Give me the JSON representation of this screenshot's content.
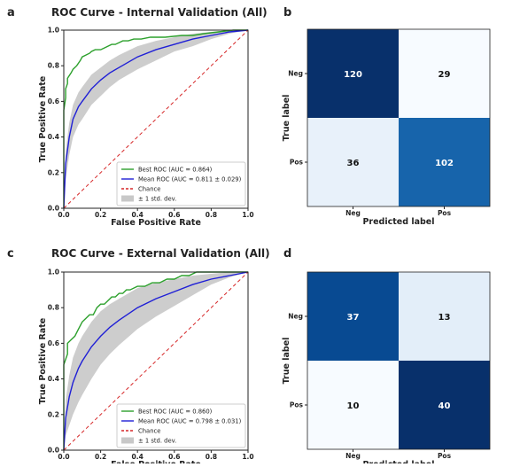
{
  "chart_data": [
    {
      "panel_label": "a",
      "type": "line",
      "title": "ROC Curve - Internal Validation (All)",
      "xlabel": "False Positive Rate",
      "ylabel": "True Positive Rate",
      "xlim": [
        0.0,
        1.0
      ],
      "ylim": [
        0.0,
        1.0
      ],
      "xticks": [
        "0.0",
        "0.2",
        "0.4",
        "0.6",
        "0.8",
        "1.0"
      ],
      "yticks": [
        "0.0",
        "0.2",
        "0.4",
        "0.6",
        "0.8",
        "1.0"
      ],
      "legend_position": "lower-right",
      "grid": false,
      "series": [
        {
          "name": "Best ROC (AUC = 0.864)",
          "color": "#2ca02c",
          "style": "step",
          "x": [
            0.0,
            0.0,
            0.01,
            0.01,
            0.02,
            0.02,
            0.04,
            0.05,
            0.07,
            0.09,
            0.1,
            0.12,
            0.14,
            0.15,
            0.17,
            0.2,
            0.22,
            0.24,
            0.26,
            0.28,
            0.3,
            0.32,
            0.35,
            0.38,
            0.42,
            0.47,
            0.55,
            0.64,
            0.7,
            0.76,
            0.84,
            0.92,
            1.0
          ],
          "y": [
            0.0,
            0.55,
            0.62,
            0.67,
            0.7,
            0.73,
            0.76,
            0.78,
            0.8,
            0.83,
            0.85,
            0.86,
            0.87,
            0.88,
            0.89,
            0.89,
            0.9,
            0.91,
            0.92,
            0.92,
            0.93,
            0.94,
            0.94,
            0.95,
            0.95,
            0.96,
            0.96,
            0.97,
            0.97,
            0.98,
            0.99,
            1.0,
            1.0
          ]
        },
        {
          "name": "Mean ROC (AUC = 0.811 ± 0.029)",
          "color": "#1f1fd6",
          "style": "line",
          "x": [
            0.0,
            0.01,
            0.03,
            0.05,
            0.08,
            0.1,
            0.15,
            0.2,
            0.25,
            0.3,
            0.4,
            0.5,
            0.6,
            0.7,
            0.8,
            0.9,
            1.0
          ],
          "y": [
            0.0,
            0.25,
            0.4,
            0.5,
            0.57,
            0.6,
            0.67,
            0.72,
            0.76,
            0.79,
            0.85,
            0.89,
            0.92,
            0.95,
            0.97,
            0.99,
            1.0
          ]
        },
        {
          "name": "Chance",
          "color": "#d62728",
          "style": "dashed",
          "x": [
            0.0,
            1.0
          ],
          "y": [
            0.0,
            1.0
          ]
        }
      ],
      "band": {
        "name": "± 1 std. dev.",
        "color": "#c8c8c8",
        "x": [
          0.0,
          0.01,
          0.03,
          0.05,
          0.08,
          0.1,
          0.15,
          0.2,
          0.25,
          0.3,
          0.4,
          0.5,
          0.6,
          0.7,
          0.8,
          0.9,
          1.0
        ],
        "upper": [
          0.0,
          0.32,
          0.48,
          0.58,
          0.65,
          0.68,
          0.75,
          0.79,
          0.83,
          0.86,
          0.91,
          0.94,
          0.96,
          0.98,
          0.99,
          1.0,
          1.0
        ],
        "lower": [
          0.0,
          0.16,
          0.3,
          0.4,
          0.47,
          0.5,
          0.58,
          0.63,
          0.68,
          0.72,
          0.78,
          0.83,
          0.88,
          0.91,
          0.95,
          0.98,
          1.0
        ]
      }
    },
    {
      "panel_label": "b",
      "type": "heatmap",
      "xlabel": "Predicted label",
      "ylabel": "True label",
      "x_categories": [
        "Neg",
        "Pos"
      ],
      "y_categories": [
        "Neg",
        "Pos"
      ],
      "values": [
        [
          120,
          29
        ],
        [
          36,
          102
        ]
      ],
      "colormap": "Blues"
    },
    {
      "panel_label": "c",
      "type": "line",
      "title": "ROC Curve - External Validation (All)",
      "xlabel": "False Positive Rate",
      "ylabel": "True Positive Rate",
      "xlim": [
        0.0,
        1.0
      ],
      "ylim": [
        0.0,
        1.0
      ],
      "xticks": [
        "0.0",
        "0.2",
        "0.4",
        "0.6",
        "0.8",
        "1.0"
      ],
      "yticks": [
        "0.0",
        "0.2",
        "0.4",
        "0.6",
        "0.8",
        "1.0"
      ],
      "legend_position": "lower-right",
      "grid": false,
      "series": [
        {
          "name": "Best ROC (AUC = 0.860)",
          "color": "#2ca02c",
          "style": "step",
          "x": [
            0.0,
            0.0,
            0.02,
            0.02,
            0.04,
            0.06,
            0.08,
            0.1,
            0.12,
            0.14,
            0.16,
            0.18,
            0.2,
            0.22,
            0.24,
            0.26,
            0.28,
            0.3,
            0.32,
            0.34,
            0.36,
            0.4,
            0.44,
            0.48,
            0.52,
            0.56,
            0.6,
            0.64,
            0.68,
            0.72,
            0.76,
            0.8,
            0.9,
            1.0
          ],
          "y": [
            0.0,
            0.48,
            0.54,
            0.6,
            0.62,
            0.64,
            0.68,
            0.72,
            0.74,
            0.76,
            0.76,
            0.8,
            0.82,
            0.82,
            0.84,
            0.86,
            0.86,
            0.88,
            0.88,
            0.9,
            0.9,
            0.92,
            0.92,
            0.94,
            0.94,
            0.96,
            0.96,
            0.98,
            0.98,
            1.0,
            1.0,
            1.0,
            1.0,
            1.0
          ]
        },
        {
          "name": "Mean ROC (AUC = 0.798 ± 0.031)",
          "color": "#1f1fd6",
          "style": "line",
          "x": [
            0.0,
            0.01,
            0.03,
            0.05,
            0.08,
            0.1,
            0.15,
            0.2,
            0.25,
            0.3,
            0.4,
            0.5,
            0.6,
            0.7,
            0.8,
            0.9,
            1.0
          ],
          "y": [
            0.0,
            0.18,
            0.3,
            0.38,
            0.46,
            0.5,
            0.58,
            0.64,
            0.69,
            0.73,
            0.8,
            0.85,
            0.89,
            0.93,
            0.96,
            0.98,
            1.0
          ]
        },
        {
          "name": "Chance",
          "color": "#d62728",
          "style": "dashed",
          "x": [
            0.0,
            1.0
          ],
          "y": [
            0.0,
            1.0
          ]
        }
      ],
      "band": {
        "name": "± 1 std. dev.",
        "color": "#c8c8c8",
        "x": [
          0.0,
          0.01,
          0.03,
          0.05,
          0.08,
          0.1,
          0.15,
          0.2,
          0.25,
          0.3,
          0.4,
          0.5,
          0.6,
          0.7,
          0.8,
          0.9,
          1.0
        ],
        "upper": [
          0.0,
          0.28,
          0.42,
          0.52,
          0.6,
          0.64,
          0.72,
          0.78,
          0.82,
          0.85,
          0.91,
          0.94,
          0.96,
          0.98,
          0.99,
          1.0,
          1.0
        ],
        "lower": [
          0.0,
          0.08,
          0.14,
          0.2,
          0.27,
          0.31,
          0.4,
          0.48,
          0.54,
          0.59,
          0.68,
          0.75,
          0.81,
          0.87,
          0.93,
          0.97,
          1.0
        ]
      }
    },
    {
      "panel_label": "d",
      "type": "heatmap",
      "xlabel": "Predicted label",
      "ylabel": "True label",
      "x_categories": [
        "Neg",
        "Pos"
      ],
      "y_categories": [
        "Neg",
        "Pos"
      ],
      "values": [
        [
          37,
          13
        ],
        [
          10,
          40
        ]
      ],
      "colormap": "Blues"
    }
  ]
}
